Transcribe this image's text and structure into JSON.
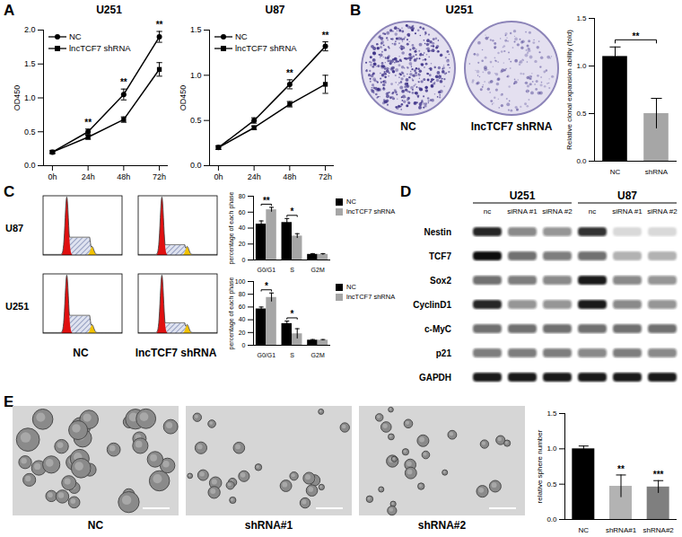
{
  "panel_labels": [
    "A",
    "B",
    "C",
    "D",
    "E"
  ],
  "chart_data": [
    {
      "type": "line",
      "title": "U251",
      "categories": [
        "0h",
        "24h",
        "48h",
        "72h"
      ],
      "ylabel": "OD450",
      "ylim": [
        0,
        2
      ],
      "yticks": [
        {
          "value": 0,
          "label": "0.0"
        },
        {
          "value": 0.5,
          "label": "0.5"
        },
        {
          "value": 1,
          "label": "1.0"
        },
        {
          "value": 1.5,
          "label": "1.5"
        },
        {
          "value": 2,
          "label": "2.0"
        }
      ],
      "legend": "top-left",
      "series": [
        {
          "name": "NC",
          "color": "#000000",
          "marker": "circle",
          "values": [
            0.2,
            0.5,
            1.05,
            1.9
          ],
          "errors": [
            0.02,
            0.04,
            0.08,
            0.08
          ]
        },
        {
          "name": "lncTCF7 shRNA",
          "color": "#000000",
          "marker": "square",
          "values": [
            0.2,
            0.42,
            0.68,
            1.42
          ],
          "errors": [
            0.02,
            0.03,
            0.04,
            0.1
          ]
        }
      ],
      "annotations": [
        {
          "category": "24h",
          "text": "**"
        },
        {
          "category": "48h",
          "text": "**"
        },
        {
          "category": "72h",
          "text": "**"
        }
      ]
    },
    {
      "type": "line",
      "title": "U87",
      "categories": [
        "0h",
        "24h",
        "48h",
        "72h"
      ],
      "ylabel": "OD450",
      "ylim": [
        0,
        1.5
      ],
      "yticks": [
        {
          "value": 0,
          "label": "0.0"
        },
        {
          "value": 0.5,
          "label": "0.5"
        },
        {
          "value": 1,
          "label": "1.0"
        },
        {
          "value": 1.5,
          "label": "1.5"
        }
      ],
      "legend": "top-left",
      "series": [
        {
          "name": "NC",
          "color": "#000000",
          "marker": "circle",
          "values": [
            0.2,
            0.5,
            0.9,
            1.32
          ],
          "errors": [
            0.02,
            0.03,
            0.05,
            0.05
          ]
        },
        {
          "name": "lncTCF7 shRNA",
          "color": "#000000",
          "marker": "square",
          "values": [
            0.2,
            0.42,
            0.68,
            0.9
          ],
          "errors": [
            0.02,
            0.02,
            0.03,
            0.1
          ]
        }
      ],
      "annotations": [
        {
          "category": "48h",
          "text": "**"
        },
        {
          "category": "72h",
          "text": "**"
        }
      ]
    },
    {
      "type": "bar",
      "categories": [
        "NC",
        "shRNA"
      ],
      "values": [
        1.1,
        0.5
      ],
      "errors": [
        0.1,
        0.16
      ],
      "colors": [
        "#000000",
        "#a6a6a6"
      ],
      "ylabel": "Relative clonal expansion ability (fold)",
      "ylim": [
        0,
        1.5
      ],
      "yticks": [
        {
          "value": 0,
          "label": "0.0"
        },
        {
          "value": 0.5,
          "label": "0.5"
        },
        {
          "value": 1,
          "label": "1.0"
        },
        {
          "value": 1.5,
          "label": "1.5"
        }
      ],
      "annotations": [
        {
          "categories": [
            "NC",
            "shRNA"
          ],
          "text": "**"
        }
      ]
    },
    {
      "type": "bar",
      "categories": [
        "G0/G1",
        "S",
        "G2M"
      ],
      "ylabel": "percentage of each phase",
      "ylim": [
        0,
        80
      ],
      "yticks": [
        0,
        20,
        40,
        60,
        80
      ],
      "legend": "right",
      "series": [
        {
          "name": "NC",
          "color": "#000000",
          "values": [
            45,
            47,
            7
          ],
          "errors": [
            4,
            5,
            1
          ]
        },
        {
          "name": "lncTCF7 shRNA",
          "color": "#a6a6a6",
          "values": [
            63,
            30,
            7
          ],
          "errors": [
            3,
            3,
            1
          ]
        }
      ],
      "annotations": [
        {
          "category": "G0/G1",
          "text": "**"
        },
        {
          "category": "S",
          "text": "*"
        }
      ]
    },
    {
      "type": "bar",
      "categories": [
        "G0/G1",
        "S",
        "G2M"
      ],
      "ylabel": "percentage of each phase",
      "ylim": [
        0,
        100
      ],
      "yticks": [
        0,
        20,
        40,
        60,
        80,
        100
      ],
      "legend": "right",
      "series": [
        {
          "name": "NC",
          "color": "#000000",
          "values": [
            57,
            34,
            8
          ],
          "errors": [
            3,
            4,
            1
          ]
        },
        {
          "name": "lncTCF7 shRNA",
          "color": "#a6a6a6",
          "values": [
            75,
            18,
            8
          ],
          "errors": [
            7,
            8,
            1
          ]
        }
      ],
      "annotations": [
        {
          "category": "G0/G1",
          "text": "*"
        },
        {
          "category": "S",
          "text": "*"
        }
      ]
    },
    {
      "type": "bar",
      "categories": [
        "NC",
        "shRNA#1",
        "shRNA#2"
      ],
      "values": [
        1.0,
        0.47,
        0.46
      ],
      "errors": [
        0.04,
        0.16,
        0.09
      ],
      "colors": [
        "#000000",
        "#b3b3b3",
        "#7f7f7f"
      ],
      "ylabel": "relative sphere number",
      "ylim": [
        0,
        1.5
      ],
      "yticks": [
        {
          "value": 0,
          "label": "0.0"
        },
        {
          "value": 0.5,
          "label": "0.5"
        },
        {
          "value": 1,
          "label": "1.0"
        },
        {
          "value": 1.5,
          "label": "1.5"
        }
      ],
      "annotations": [
        {
          "category": "shRNA#1",
          "text": "**"
        },
        {
          "category": "shRNA#2",
          "text": "***"
        }
      ]
    }
  ],
  "colony_images": {
    "title": "U251",
    "labels": [
      "NC",
      "lncTCF7 shRNA"
    ]
  },
  "flow_cytometry": {
    "rows": [
      "U87",
      "U251"
    ],
    "columns": [
      "NC",
      "lncTCF7 shRNA"
    ]
  },
  "western_blot": {
    "groups": [
      "U251",
      "U87"
    ],
    "lanes": [
      "nc",
      "siRNA #1",
      "siRNA #2"
    ],
    "proteins": [
      "Nestin",
      "TCF7",
      "Sox2",
      "CyclinD1",
      "c-MyC",
      "p21",
      "GAPDH"
    ],
    "band_intensity": [
      [
        0.9,
        0.5,
        0.45,
        0.85,
        0.15,
        0.15
      ],
      [
        1.0,
        0.6,
        0.55,
        0.6,
        0.3,
        0.3
      ],
      [
        0.6,
        0.55,
        0.5,
        0.95,
        0.5,
        0.45
      ],
      [
        0.9,
        0.45,
        0.45,
        0.95,
        0.5,
        0.45
      ],
      [
        0.6,
        0.6,
        0.6,
        0.6,
        0.6,
        0.6
      ],
      [
        0.55,
        0.55,
        0.55,
        0.5,
        0.55,
        0.5
      ],
      [
        0.95,
        0.95,
        0.95,
        0.95,
        0.95,
        0.95
      ]
    ]
  },
  "sphere_images": {
    "labels": [
      "NC",
      "shRNA#1",
      "shRNA#2"
    ]
  }
}
